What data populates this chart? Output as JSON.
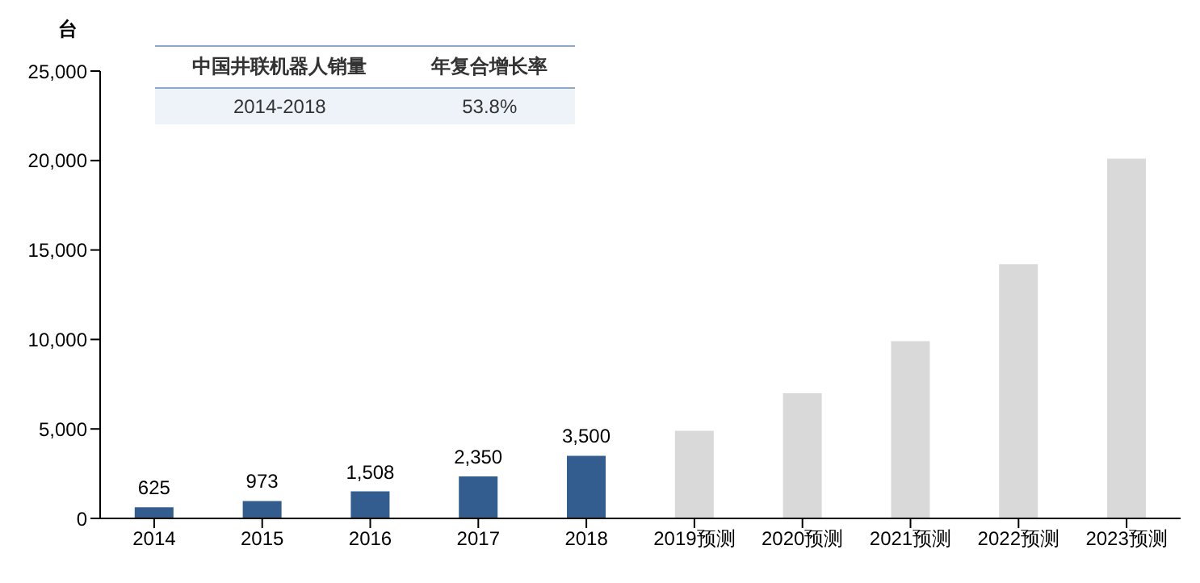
{
  "chart_data": {
    "type": "bar",
    "ylabel": "台",
    "categories": [
      "2014",
      "2015",
      "2016",
      "2017",
      "2018",
      "2019预测",
      "2020预测",
      "2021预测",
      "2022预测",
      "2023预测"
    ],
    "values": [
      625,
      973,
      1508,
      2350,
      3500,
      4900,
      7000,
      9900,
      14200,
      20100
    ],
    "colors": [
      "#325d8e",
      "#325d8e",
      "#325d8e",
      "#325d8e",
      "#325d8e",
      "#d9d9d9",
      "#d9d9d9",
      "#d9d9d9",
      "#d9d9d9",
      "#d9d9d9"
    ],
    "value_labels": [
      "625",
      "973",
      "1,508",
      "2,350",
      "3,500",
      null,
      null,
      null,
      null,
      null
    ],
    "ylim": [
      0,
      25000
    ],
    "yticks": [
      {
        "value": 0,
        "label": "0"
      },
      {
        "value": 5000,
        "label": "5,000"
      },
      {
        "value": 10000,
        "label": "10,000"
      },
      {
        "value": 15000,
        "label": "15,000"
      },
      {
        "value": 20000,
        "label": "20,000"
      },
      {
        "value": 25000,
        "label": "25,000"
      }
    ],
    "grid": false,
    "legend": false,
    "annotations": [
      "中国井联机器人销量",
      "年复合增长率",
      "2014-2018",
      "53.8%"
    ]
  }
}
